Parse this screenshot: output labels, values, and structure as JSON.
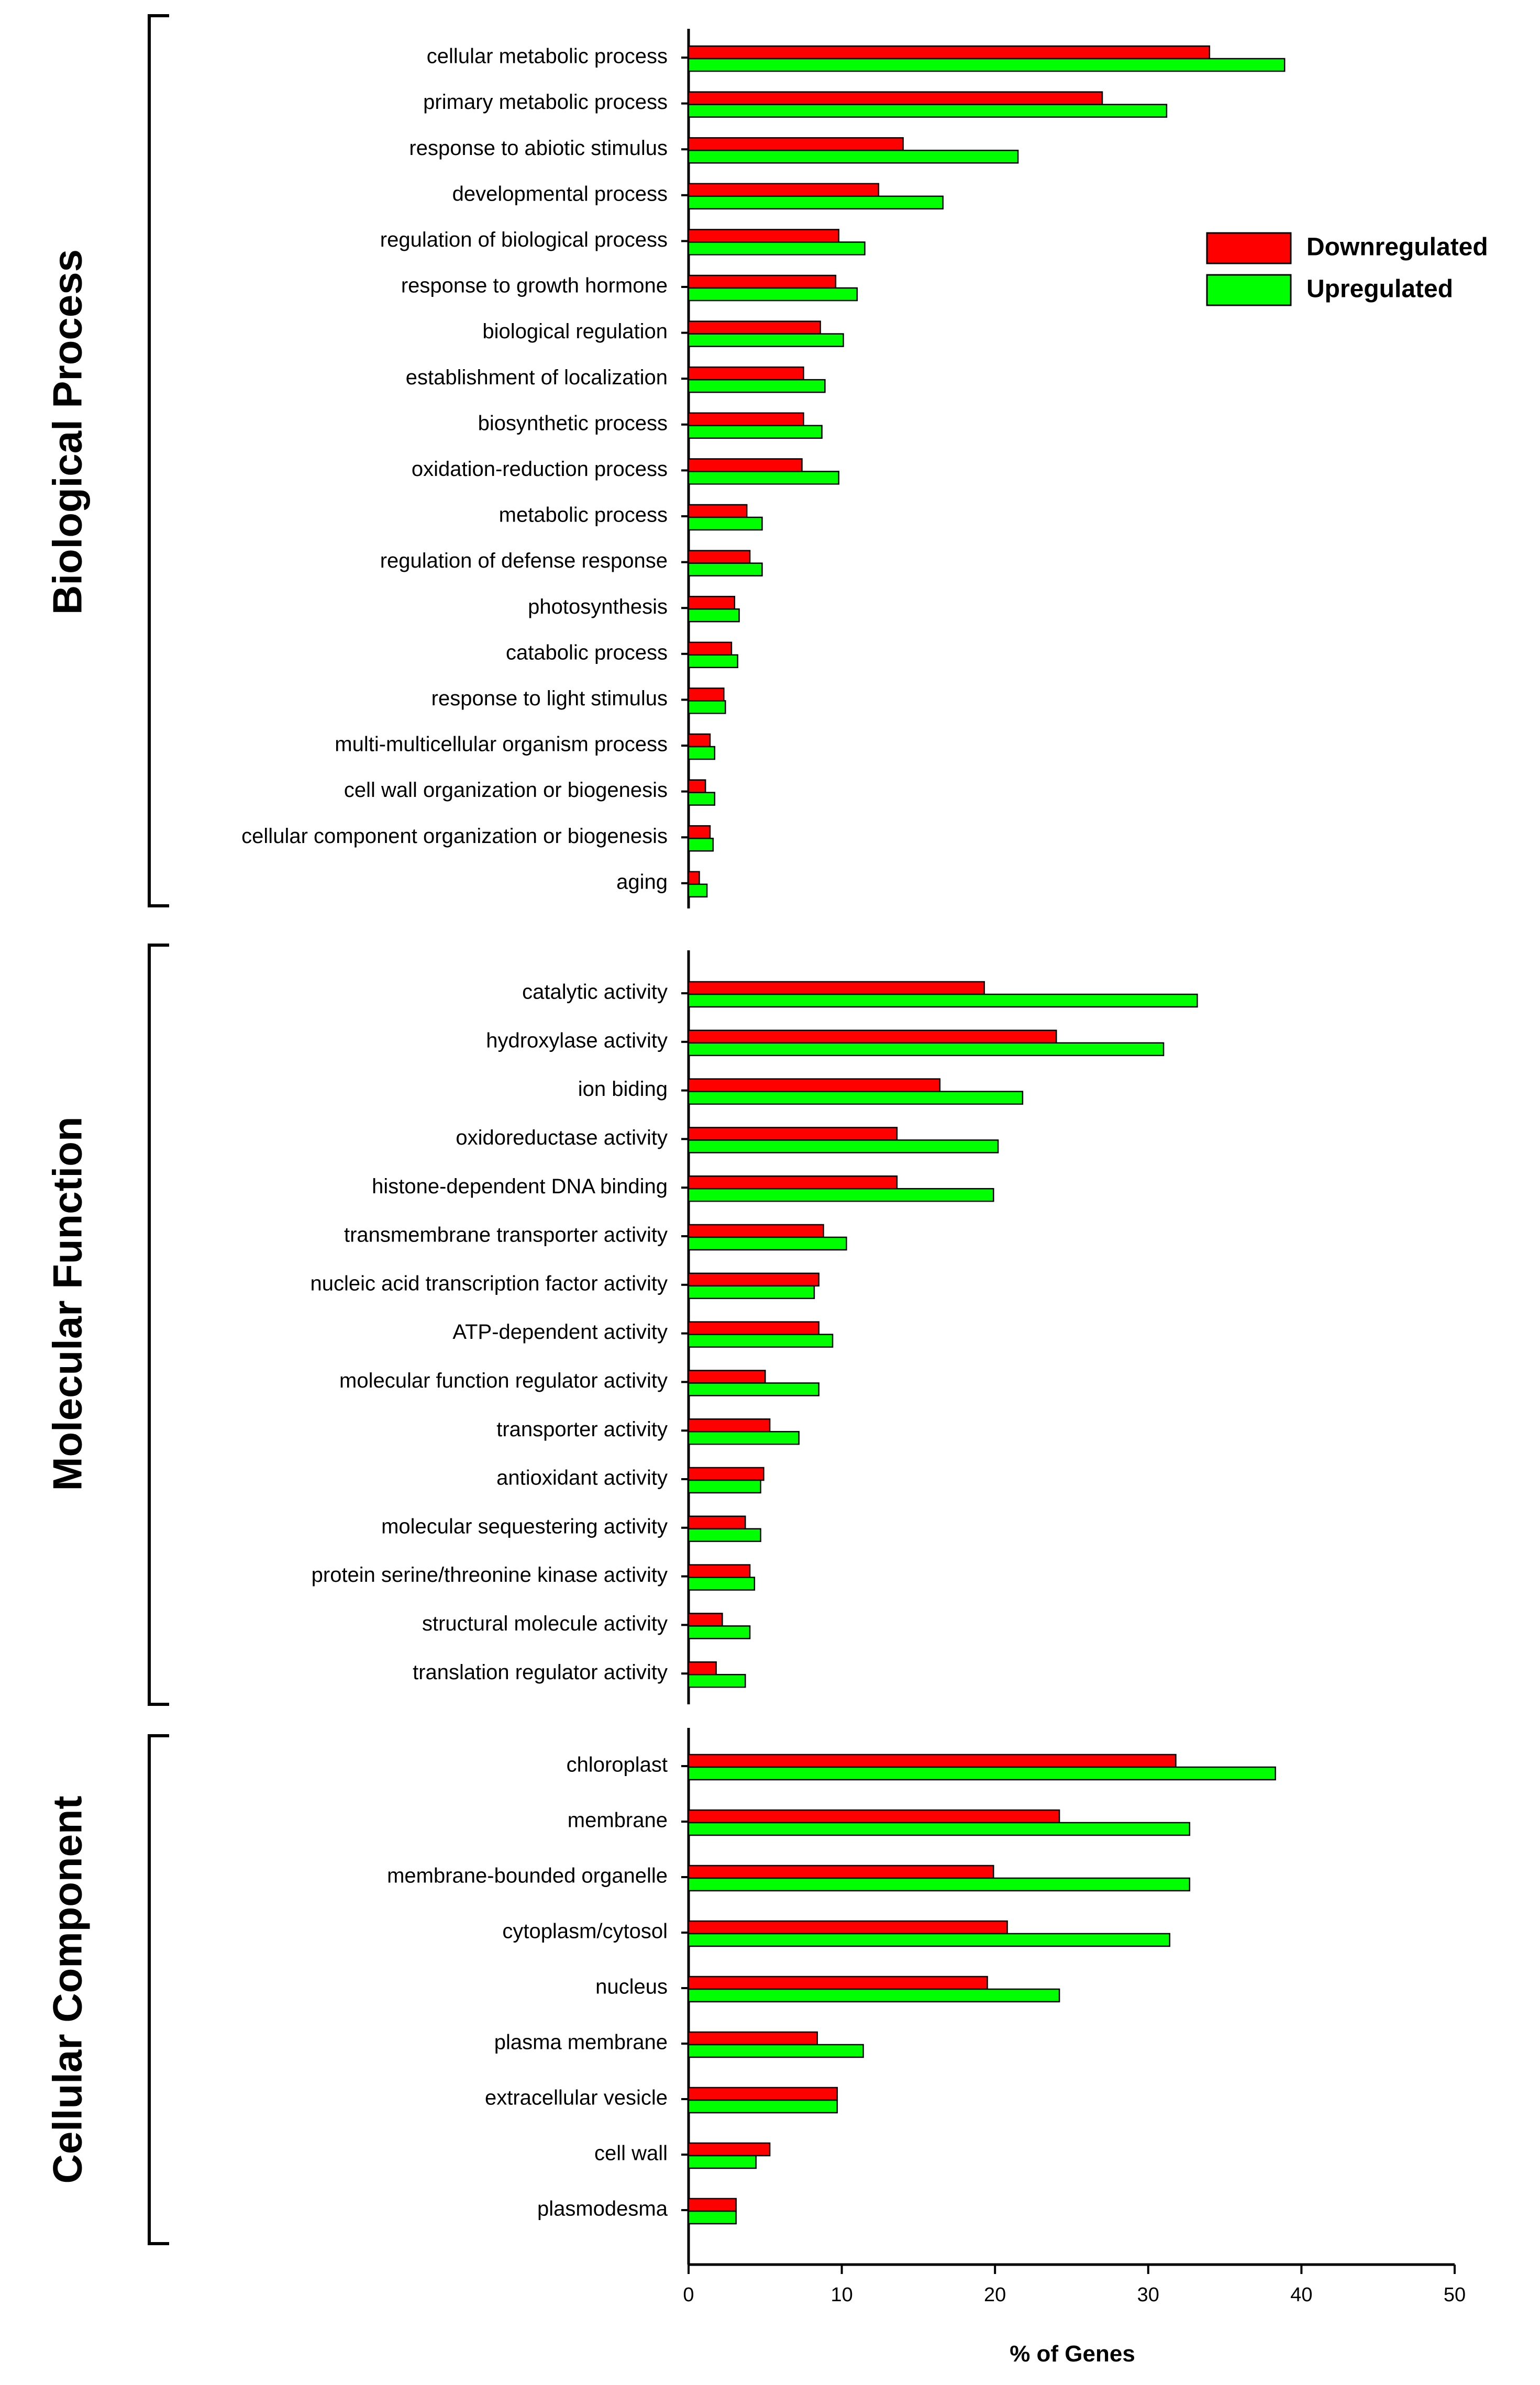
{
  "chart_data": {
    "type": "bar",
    "orientation": "horizontal",
    "xlabel": "% of Genes",
    "xlim": [
      0,
      50
    ],
    "xticks": [
      0,
      10,
      20,
      30,
      40,
      50
    ],
    "legend": {
      "placement": "top-right",
      "entries": [
        {
          "name": "Downregulated",
          "color": "#ff0000"
        },
        {
          "name": "Upregulated",
          "color": "#00ff00"
        }
      ]
    },
    "panels": [
      {
        "title": "Biological Process",
        "categories": [
          "cellular metabolic process",
          "primary metabolic process",
          "response to abiotic stimulus",
          "developmental process",
          "regulation of biological process",
          "response to growth hormone",
          "biological regulation",
          "establishment of localization",
          "biosynthetic process",
          "oxidation-reduction process",
          "metabolic process",
          "regulation of defense response",
          "photosynthesis",
          "catabolic process",
          "response to light stimulus",
          "multi-multicellular organism process",
          "cell wall organization or biogenesis",
          "cellular component organization or biogenesis",
          "aging"
        ],
        "series": [
          {
            "name": "Downregulated",
            "values": [
              34,
              27,
              14,
              12.4,
              9.8,
              9.6,
              8.6,
              7.5,
              7.5,
              7.4,
              3.8,
              4,
              3,
              2.8,
              2.3,
              1.4,
              1.1,
              1.4,
              0.7
            ]
          },
          {
            "name": "Upregulated",
            "values": [
              38.9,
              31.2,
              21.5,
              16.6,
              11.5,
              11,
              10.1,
              8.9,
              8.7,
              9.8,
              4.8,
              4.8,
              3.3,
              3.2,
              2.4,
              1.7,
              1.7,
              1.6,
              1.2
            ]
          }
        ]
      },
      {
        "title": "Molecular Function",
        "categories": [
          "catalytic activity",
          "hydroxylase activity",
          "ion biding",
          "oxidoreductase activity",
          "histone-dependent DNA binding",
          "transmembrane transporter activity",
          "nucleic acid transcription factor activity",
          "ATP-dependent activity",
          "molecular function regulator activity",
          "transporter activity",
          "antioxidant activity",
          "molecular sequestering activity",
          "protein serine/threonine kinase activity",
          "structural molecule activity",
          "translation regulator activity"
        ],
        "series": [
          {
            "name": "Downregulated",
            "values": [
              19.3,
              24,
              16.4,
              13.6,
              13.6,
              8.8,
              8.5,
              8.5,
              5,
              5.3,
              4.9,
              3.7,
              4,
              2.2,
              1.8
            ]
          },
          {
            "name": "Upregulated",
            "values": [
              33.2,
              31,
              21.8,
              20.2,
              19.9,
              10.3,
              8.2,
              9.4,
              8.5,
              7.2,
              4.7,
              4.7,
              4.3,
              4,
              3.7
            ]
          }
        ]
      },
      {
        "title": "Cellular Component",
        "categories": [
          "chloroplast",
          "membrane",
          "membrane-bounded organelle",
          "cytoplasm/cytosol",
          "nucleus",
          "plasma membrane",
          "extracellular vesicle",
          "cell wall",
          "plasmodesma"
        ],
        "series": [
          {
            "name": "Downregulated",
            "values": [
              31.8,
              24.2,
              19.9,
              20.8,
              19.5,
              8.4,
              9.7,
              5.3,
              3.1
            ]
          },
          {
            "name": "Upregulated",
            "values": [
              38.3,
              32.7,
              32.7,
              31.4,
              24.2,
              11.4,
              9.7,
              4.4,
              3.1
            ]
          }
        ]
      }
    ]
  }
}
